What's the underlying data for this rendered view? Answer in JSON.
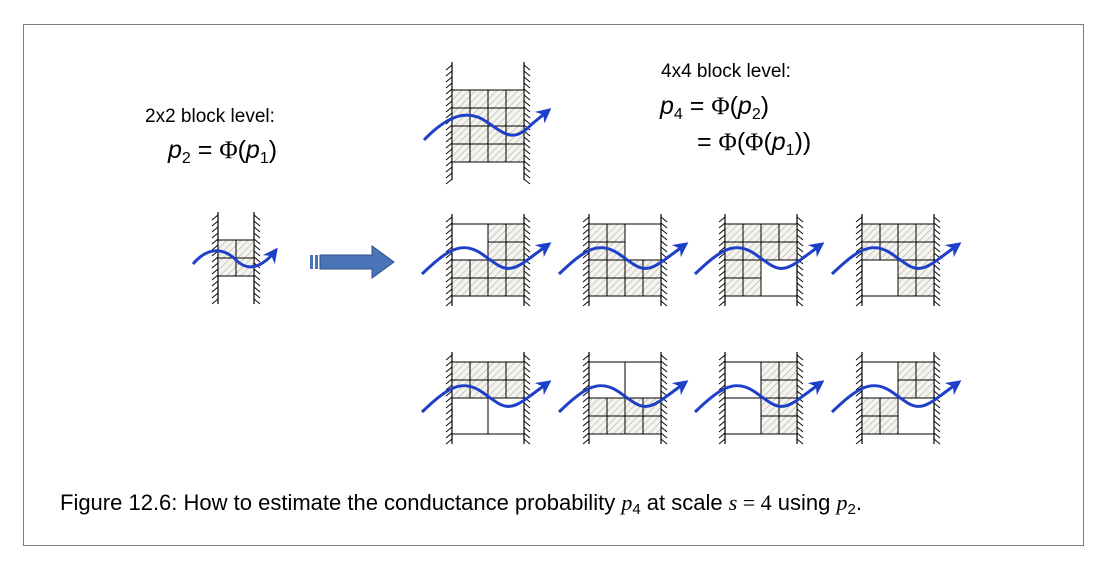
{
  "labels": {
    "level2": "2x2 block level:",
    "level4": "4x4 block level:"
  },
  "equations": {
    "p2_lhs": "p",
    "p2_sub": "2",
    "p2_eq": " = ",
    "p2_phi": "Φ",
    "p2_open": "(",
    "p2_arg": "p",
    "p2_arg_sub": "1",
    "p2_close": ")",
    "p4_lhs": "p",
    "p4_sub": "4",
    "p4_eq": " = ",
    "p4_phi": "Φ",
    "p4_open": "(",
    "p4_arg": "p",
    "p4_arg_sub": "2",
    "p4_close": ")",
    "line2_eq": "= ",
    "line2_phi1": "Φ",
    "line2_open1": "(",
    "line2_phi2": "Φ",
    "line2_open2": "(",
    "line2_arg": "p",
    "line2_arg_sub": "1",
    "line2_close": "))"
  },
  "caption": {
    "prefix": "Figure 12.6: How to estimate the conductance probability ",
    "var1": "p",
    "var1_sub": "4",
    "mid1": " at scale ",
    "var2": "s",
    "eq": " = 4",
    "mid2": " using ",
    "var3": "p",
    "var3_sub": "2",
    "suffix": "."
  },
  "colors": {
    "path": "#1e3fc8",
    "arrow_fill": "#4a74b8",
    "hatch": "#b8b8b8",
    "frame": "#7a7a7a"
  },
  "configurations": {
    "top": [
      [
        1,
        1
      ],
      [
        1,
        1
      ]
    ],
    "row1": [
      [
        [
          0,
          1
        ],
        [
          1,
          1
        ]
      ],
      [
        [
          1,
          0
        ],
        [
          1,
          1
        ]
      ],
      [
        [
          1,
          1
        ],
        [
          1,
          0
        ]
      ],
      [
        [
          1,
          1
        ],
        [
          0,
          1
        ]
      ]
    ],
    "row2": [
      [
        [
          1,
          1
        ],
        [
          0,
          0
        ]
      ],
      [
        [
          0,
          0
        ],
        [
          1,
          1
        ]
      ],
      [
        [
          0,
          1
        ],
        [
          0,
          1
        ]
      ],
      [
        [
          0,
          1
        ],
        [
          1,
          0
        ]
      ]
    ]
  }
}
